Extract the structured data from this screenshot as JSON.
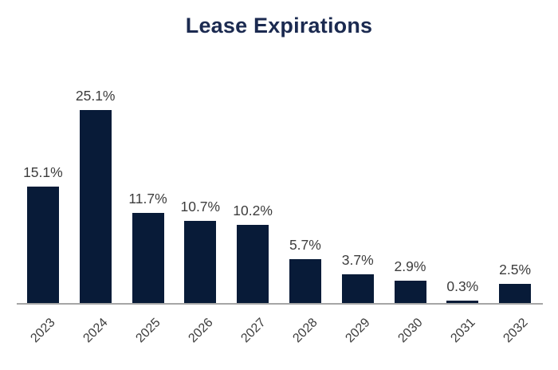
{
  "chart_data": {
    "type": "bar",
    "title": "Lease Expirations",
    "categories": [
      "2023",
      "2024",
      "2025",
      "2026",
      "2027",
      "2028",
      "2029",
      "2030",
      "2031",
      "2032"
    ],
    "values": [
      15.1,
      25.1,
      11.7,
      10.7,
      10.2,
      5.7,
      3.7,
      2.9,
      0.3,
      2.5
    ],
    "value_labels": [
      "15.1%",
      "25.1%",
      "11.7%",
      "10.7%",
      "10.2%",
      "5.7%",
      "3.7%",
      "2.9%",
      "0.3%",
      "2.5%"
    ],
    "xlabel": "",
    "ylabel": "",
    "ylim": [
      0,
      27
    ],
    "grid": false,
    "legend": "none",
    "colors": {
      "bar": "#081b38",
      "title": "#1b2a50",
      "data_label": "#3d3d3d",
      "tick_label": "#3d3d3d",
      "axis_line": "#a6a6a6",
      "background": "#ffffff"
    }
  }
}
